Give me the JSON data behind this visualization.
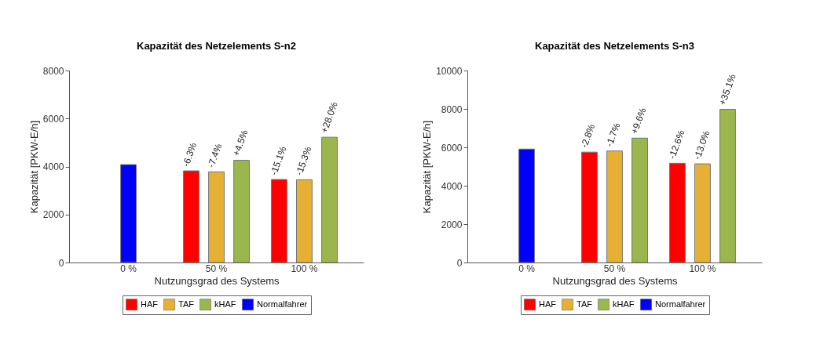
{
  "chart_data": [
    {
      "type": "bar",
      "title": "Kapazität des Netzelements S-n2",
      "xlabel": "Nutzungsgrad des Systems",
      "ylabel": "Kapazität [PKW-E/h]",
      "categories": [
        "0 %",
        "50 %",
        "100 %"
      ],
      "ylim": [
        0,
        8000
      ],
      "yticks": [
        0,
        2000,
        4000,
        6000,
        8000
      ],
      "legend": "bottom",
      "series": [
        {
          "name": "HAF",
          "color": "#ff0000",
          "values": [
            null,
            3820,
            3460
          ]
        },
        {
          "name": "TAF",
          "color": "#e6b035",
          "values": [
            null,
            3780,
            3450
          ]
        },
        {
          "name": "kHAF",
          "color": "#9ab64c",
          "values": [
            null,
            4260,
            5220
          ]
        },
        {
          "name": "Normalfahrer",
          "color": "#0000ff",
          "values": [
            4080,
            null,
            null
          ]
        }
      ],
      "annotations": [
        "-6.3%",
        "-7.4%",
        "+4.5%",
        "-15.1%",
        "-15.3%",
        "+28.0%"
      ]
    },
    {
      "type": "bar",
      "title": "Kapazität des Netzelements S-n3",
      "xlabel": "Nutzungsgrad des Systems",
      "ylabel": "Kapazität [PKW-E/h]",
      "categories": [
        "0 %",
        "50 %",
        "100 %"
      ],
      "ylim": [
        0,
        10000
      ],
      "yticks": [
        0,
        2000,
        4000,
        6000,
        8000,
        10000
      ],
      "legend": "bottom",
      "series": [
        {
          "name": "HAF",
          "color": "#ff0000",
          "values": [
            null,
            5750,
            5170
          ]
        },
        {
          "name": "TAF",
          "color": "#e6b035",
          "values": [
            null,
            5810,
            5140
          ]
        },
        {
          "name": "kHAF",
          "color": "#9ab64c",
          "values": [
            null,
            6480,
            7980
          ]
        },
        {
          "name": "Normalfahrer",
          "color": "#0000ff",
          "values": [
            5910,
            null,
            null
          ]
        }
      ],
      "annotations": [
        "-2.8%",
        "-1.7%",
        "+9.6%",
        "-12.6%",
        "-13.0%",
        "+35.1%"
      ]
    }
  ]
}
